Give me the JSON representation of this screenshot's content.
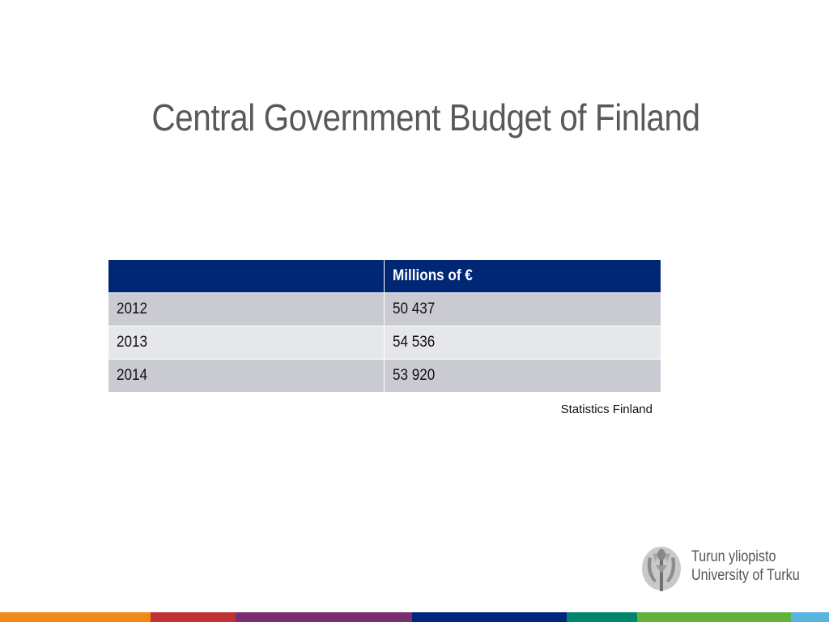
{
  "slide": {
    "title": "Central Government Budget of Finland"
  },
  "table": {
    "header": [
      "",
      "Millions of €"
    ],
    "rows": [
      [
        "2012",
        "50 437"
      ],
      [
        "2013",
        "54 536"
      ],
      [
        "2014",
        "53 920"
      ]
    ]
  },
  "source": "Statistics Finland",
  "logo": {
    "icon": "university-emblem-icon",
    "line1": "Turun yliopisto",
    "line2": "University of Turku"
  },
  "colors": {
    "header_bg": "#002776",
    "row_dark": "#cacbd2",
    "row_light": "#e6e7ea",
    "title": "#595959",
    "bar": [
      "#ef8a16",
      "#c03136",
      "#7b2e6f",
      "#00267f",
      "#00846c",
      "#60b238",
      "#58b5e0"
    ]
  }
}
